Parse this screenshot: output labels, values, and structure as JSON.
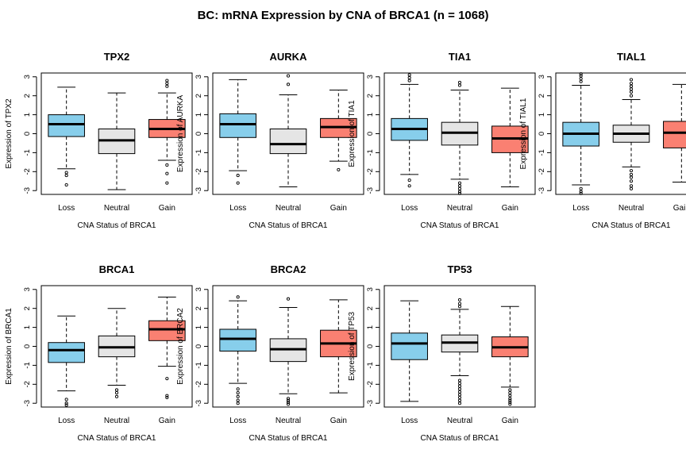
{
  "figure": {
    "title": "BC: mRNA Expression by CNA of BRCA1 (n = 1068)"
  },
  "colors": {
    "Loss": "#87ceeb",
    "Neutral": "#e5e5e5",
    "Gain": "#fa8072",
    "stroke": "#000000"
  },
  "chart_data": [
    {
      "type": "boxplot",
      "title": "TPX2",
      "xlabel": "CNA Status of BRCA1",
      "ylabel": "Expression of TPX2",
      "categories": [
        "Loss",
        "Neutral",
        "Gain"
      ],
      "ylim": [
        -3.2,
        3.2
      ],
      "yticks": [
        -3,
        -2,
        -1,
        0,
        1,
        2,
        3
      ],
      "boxes": [
        {
          "q1": -0.15,
          "median": 0.5,
          "q3": 1.0,
          "whisker_low": -1.85,
          "whisker_high": 2.45,
          "outliers": [
            -2.05,
            -2.2,
            -2.7
          ]
        },
        {
          "q1": -1.05,
          "median": -0.35,
          "q3": 0.25,
          "whisker_low": -2.95,
          "whisker_high": 2.15,
          "outliers": []
        },
        {
          "q1": -0.2,
          "median": 0.25,
          "q3": 0.75,
          "whisker_low": -1.4,
          "whisker_high": 2.15,
          "outliers": [
            2.5,
            2.65,
            2.8,
            -1.65,
            -2.1,
            -2.6
          ]
        }
      ]
    },
    {
      "type": "boxplot",
      "title": "AURKA",
      "xlabel": "CNA Status of BRCA1",
      "ylabel": "Expression of AURKA",
      "categories": [
        "Loss",
        "Neutral",
        "Gain"
      ],
      "ylim": [
        -3.2,
        3.2
      ],
      "yticks": [
        -3,
        -2,
        -1,
        0,
        1,
        2,
        3
      ],
      "boxes": [
        {
          "q1": -0.2,
          "median": 0.5,
          "q3": 1.05,
          "whisker_low": -1.95,
          "whisker_high": 2.85,
          "outliers": [
            -2.2,
            -2.6
          ]
        },
        {
          "q1": -1.05,
          "median": -0.55,
          "q3": 0.25,
          "whisker_low": -2.8,
          "whisker_high": 2.05,
          "outliers": [
            2.6,
            3.05
          ]
        },
        {
          "q1": -0.2,
          "median": 0.35,
          "q3": 0.8,
          "whisker_low": -1.45,
          "whisker_high": 2.3,
          "outliers": [
            -1.9
          ]
        }
      ]
    },
    {
      "type": "boxplot",
      "title": "TIA1",
      "xlabel": "CNA Status of BRCA1",
      "ylabel": "Expression of TIA1",
      "categories": [
        "Loss",
        "Neutral",
        "Gain"
      ],
      "ylim": [
        -3.2,
        3.2
      ],
      "yticks": [
        -3,
        -2,
        -1,
        0,
        1,
        2,
        3
      ],
      "boxes": [
        {
          "q1": -0.35,
          "median": 0.25,
          "q3": 0.8,
          "whisker_low": -2.15,
          "whisker_high": 2.6,
          "outliers": [
            2.8,
            2.95,
            3.1,
            -2.45,
            -2.75
          ]
        },
        {
          "q1": -0.6,
          "median": 0.05,
          "q3": 0.6,
          "whisker_low": -2.4,
          "whisker_high": 2.3,
          "outliers": [
            2.55,
            2.7,
            -2.6,
            -2.75,
            -2.9,
            -3.05,
            -3.15
          ]
        },
        {
          "q1": -1.0,
          "median": -0.25,
          "q3": 0.4,
          "whisker_low": -2.8,
          "whisker_high": 2.4,
          "outliers": []
        }
      ]
    },
    {
      "type": "boxplot",
      "title": "TIAL1",
      "xlabel": "CNA Status of BRCA1",
      "ylabel": "Expression of TIAL1",
      "categories": [
        "Loss",
        "Neutral",
        "Gain"
      ],
      "ylim": [
        -3.2,
        3.2
      ],
      "yticks": [
        -3,
        -2,
        -1,
        0,
        1,
        2,
        3
      ],
      "boxes": [
        {
          "q1": -0.65,
          "median": 0.0,
          "q3": 0.6,
          "whisker_low": -2.7,
          "whisker_high": 2.55,
          "outliers": [
            2.75,
            2.9,
            3.05,
            3.15,
            -2.9,
            -3.05,
            -3.15
          ]
        },
        {
          "q1": -0.45,
          "median": 0.0,
          "q3": 0.45,
          "whisker_low": -1.75,
          "whisker_high": 1.8,
          "outliers": [
            2.0,
            2.2,
            2.35,
            2.5,
            2.65,
            2.85,
            -1.95,
            -2.15,
            -2.3,
            -2.5,
            -2.75,
            -2.9
          ]
        },
        {
          "q1": -0.75,
          "median": 0.05,
          "q3": 0.65,
          "whisker_low": -2.55,
          "whisker_high": 2.6,
          "outliers": []
        }
      ]
    },
    {
      "type": "boxplot",
      "title": "BRCA1",
      "xlabel": "CNA Status of BRCA1",
      "ylabel": "Expression of BRCA1",
      "categories": [
        "Loss",
        "Neutral",
        "Gain"
      ],
      "ylim": [
        -3.2,
        3.2
      ],
      "yticks": [
        -3,
        -2,
        -1,
        0,
        1,
        2,
        3
      ],
      "boxes": [
        {
          "q1": -0.85,
          "median": -0.2,
          "q3": 0.2,
          "whisker_low": -2.35,
          "whisker_high": 1.6,
          "outliers": [
            -2.8,
            -3.0,
            -3.1
          ]
        },
        {
          "q1": -0.55,
          "median": -0.05,
          "q3": 0.55,
          "whisker_low": -2.05,
          "whisker_high": 2.0,
          "outliers": [
            -2.3,
            -2.45,
            -2.65
          ]
        },
        {
          "q1": 0.3,
          "median": 0.9,
          "q3": 1.35,
          "whisker_low": -1.05,
          "whisker_high": 2.6,
          "outliers": [
            -1.7,
            -2.6,
            -2.7
          ]
        }
      ]
    },
    {
      "type": "boxplot",
      "title": "BRCA2",
      "xlabel": "CNA Status of BRCA1",
      "ylabel": "Expression of BRCA2",
      "categories": [
        "Loss",
        "Neutral",
        "Gain"
      ],
      "ylim": [
        -3.2,
        3.2
      ],
      "yticks": [
        -3,
        -2,
        -1,
        0,
        1,
        2,
        3
      ],
      "boxes": [
        {
          "q1": -0.25,
          "median": 0.4,
          "q3": 0.9,
          "whisker_low": -1.95,
          "whisker_high": 2.4,
          "outliers": [
            2.6,
            -2.25,
            -2.45,
            -2.65,
            -2.85,
            -3.0
          ]
        },
        {
          "q1": -0.8,
          "median": -0.15,
          "q3": 0.4,
          "whisker_low": -2.5,
          "whisker_high": 2.05,
          "outliers": [
            2.5,
            -2.75,
            -2.85,
            -2.95,
            -3.05
          ]
        },
        {
          "q1": -0.55,
          "median": 0.15,
          "q3": 0.85,
          "whisker_low": -2.45,
          "whisker_high": 2.45,
          "outliers": []
        }
      ]
    },
    {
      "type": "boxplot",
      "title": "TP53",
      "xlabel": "CNA Status of BRCA1",
      "ylabel": "Expression of TP53",
      "categories": [
        "Loss",
        "Neutral",
        "Gain"
      ],
      "ylim": [
        -3.2,
        3.2
      ],
      "yticks": [
        -3,
        -2,
        -1,
        0,
        1,
        2,
        3
      ],
      "boxes": [
        {
          "q1": -0.7,
          "median": 0.15,
          "q3": 0.7,
          "whisker_low": -2.9,
          "whisker_high": 2.4,
          "outliers": []
        },
        {
          "q1": -0.3,
          "median": 0.2,
          "q3": 0.6,
          "whisker_low": -1.55,
          "whisker_high": 1.95,
          "outliers": [
            2.1,
            2.25,
            2.45,
            -1.8,
            -1.95,
            -2.1,
            -2.25,
            -2.4,
            -2.55,
            -2.7,
            -2.85,
            -3.0
          ]
        },
        {
          "q1": -0.55,
          "median": -0.05,
          "q3": 0.5,
          "whisker_low": -2.15,
          "whisker_high": 2.1,
          "outliers": [
            -2.3,
            -2.45,
            -2.6,
            -2.75,
            -2.85,
            -2.95,
            -3.05
          ]
        }
      ]
    }
  ]
}
